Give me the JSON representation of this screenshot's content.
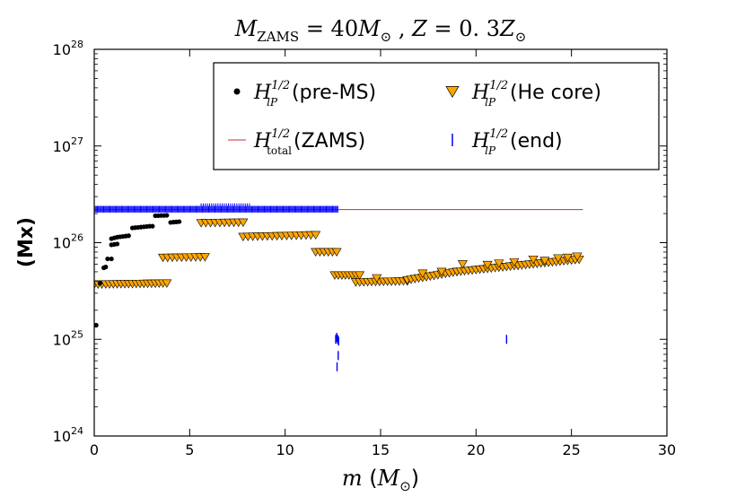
{
  "chart_data": {
    "type": "scatter",
    "title": "M_ZAMS = 40 M_⊙ , Z = 0.3 Z_⊙",
    "xlabel": "m (M_⊙)",
    "ylabel": "(Mx)",
    "xlim": [
      0,
      30
    ],
    "ylim": [
      1e+24,
      1e+28
    ],
    "yscale": "log",
    "x_ticks": [
      "0",
      "5",
      "10",
      "15",
      "20",
      "25",
      "30"
    ],
    "y_ticks": [
      {
        "base": "10",
        "exp": "24"
      },
      {
        "base": "10",
        "exp": "25"
      },
      {
        "base": "10",
        "exp": "26"
      },
      {
        "base": "10",
        "exp": "27"
      },
      {
        "base": "10",
        "exp": "28"
      }
    ],
    "legend_position": "top-right",
    "series": [
      {
        "name": "pre-MS",
        "label_symbol": "H",
        "label_sup": "1/2",
        "label_sub": "lP",
        "label_text": "(pre-MS)",
        "marker": "circle",
        "color": "#000000",
        "points": [
          [
            0.1,
            1.4e+25
          ],
          [
            0.3,
            3.8e+25
          ],
          [
            0.5,
            5.5e+25
          ],
          [
            0.6,
            5.6e+25
          ],
          [
            0.7,
            6.8e+25
          ],
          [
            0.9,
            6.8e+25
          ],
          [
            0.9,
            9.5e+25
          ],
          [
            1.05,
            9.6e+25
          ],
          [
            1.2,
            9.7e+25
          ],
          [
            0.9,
            1.1e+26
          ],
          [
            1.05,
            1.12e+26
          ],
          [
            1.2,
            1.14e+26
          ],
          [
            1.35,
            1.15e+26
          ],
          [
            1.5,
            1.16e+26
          ],
          [
            1.65,
            1.17e+26
          ],
          [
            1.8,
            1.18e+26
          ],
          [
            2.0,
            1.42e+26
          ],
          [
            2.15,
            1.43e+26
          ],
          [
            2.3,
            1.44e+26
          ],
          [
            2.45,
            1.45e+26
          ],
          [
            2.6,
            1.46e+26
          ],
          [
            2.75,
            1.47e+26
          ],
          [
            2.9,
            1.48e+26
          ],
          [
            3.05,
            1.48e+26
          ],
          [
            3.2,
            1.9e+26
          ],
          [
            3.35,
            1.9e+26
          ],
          [
            3.5,
            1.91e+26
          ],
          [
            3.65,
            1.91e+26
          ],
          [
            3.8,
            1.92e+26
          ],
          [
            4.0,
            1.62e+26
          ],
          [
            4.15,
            1.63e+26
          ],
          [
            4.3,
            1.64e+26
          ],
          [
            4.45,
            1.65e+26
          ]
        ]
      },
      {
        "name": "He core",
        "label_symbol": "H",
        "label_sup": "1/2",
        "label_sub": "lP",
        "label_text": "(He core)",
        "marker": "triangle-down",
        "color": "#FFA500",
        "segments": [
          {
            "x_start": 0.0,
            "x_end": 3.8,
            "step": 0.2,
            "y_start": 3.7e+25,
            "y_end": 3.8e+25
          },
          {
            "x_start": 3.6,
            "x_end": 5.8,
            "step": 0.25,
            "y_start": 7e+25,
            "y_end": 7.1e+25
          },
          {
            "x_start": 5.6,
            "x_end": 7.8,
            "step": 0.25,
            "y_start": 1.6e+26,
            "y_end": 1.62e+26
          },
          {
            "x_start": 7.8,
            "x_end": 11.6,
            "step": 0.25,
            "y_start": 1.15e+26,
            "y_end": 1.2e+26
          },
          {
            "x_start": 11.6,
            "x_end": 12.7,
            "step": 0.2,
            "y_start": 8e+25,
            "y_end": 8e+25
          },
          {
            "x_start": 12.6,
            "x_end": 13.9,
            "step": 0.2,
            "y_start": 4.6e+25,
            "y_end": 4.6e+25
          },
          {
            "x_start": 13.7,
            "x_end": 16.4,
            "step": 0.2,
            "y_start": 3.9e+25,
            "y_end": 4e+25
          },
          {
            "x_start": 16.4,
            "x_end": 19.0,
            "step": 0.2,
            "y_start": 4.1e+25,
            "y_end": 5e+25
          },
          {
            "x_start": 19.0,
            "x_end": 22.2,
            "step": 0.2,
            "y_start": 5e+25,
            "y_end": 5.8e+25
          },
          {
            "x_start": 22.2,
            "x_end": 25.4,
            "step": 0.2,
            "y_start": 5.8e+25,
            "y_end": 6.7e+25
          }
        ],
        "extra_points": [
          [
            19.3,
            6e+25
          ],
          [
            20.6,
            5.9e+25
          ],
          [
            21.2,
            6.1e+25
          ],
          [
            22.0,
            6.3e+25
          ],
          [
            23.0,
            6.7e+25
          ],
          [
            23.6,
            6.5e+25
          ],
          [
            24.3,
            6.9e+25
          ],
          [
            24.8,
            7e+25
          ],
          [
            25.3,
            7.2e+25
          ],
          [
            17.2,
            4.8e+25
          ],
          [
            18.2,
            5e+25
          ],
          [
            14.8,
            4.3e+25
          ]
        ]
      },
      {
        "name": "ZAMS",
        "label_symbol": "H",
        "label_sup": "1/2",
        "label_sub": "total",
        "label_text": "(ZAMS)",
        "marker": "line",
        "color": "#D62728",
        "x": [
          0.0,
          25.6
        ],
        "y": [
          2.2e+26,
          2.2e+26
        ]
      },
      {
        "name": "end",
        "label_symbol": "H",
        "label_sup": "1/2",
        "label_sub": "lP",
        "label_text": "(end)",
        "marker": "vline",
        "color": "#0000FF",
        "band": {
          "x_start": 0.0,
          "x_end": 12.8,
          "y_low": 2.05e+26,
          "y_high": 2.4e+26
        },
        "band_top_segment": {
          "x_start": 5.6,
          "x_end": 8.2,
          "y_high": 2.55e+26
        },
        "points": [
          [
            12.65,
            1e+25
          ],
          [
            12.7,
            1.05e+25
          ],
          [
            12.75,
            1e+25
          ],
          [
            12.8,
            9.6e+24
          ],
          [
            12.78,
            6.8e+24
          ],
          [
            12.72,
            5.2e+24
          ],
          [
            21.6,
            1e+25
          ]
        ]
      }
    ]
  }
}
